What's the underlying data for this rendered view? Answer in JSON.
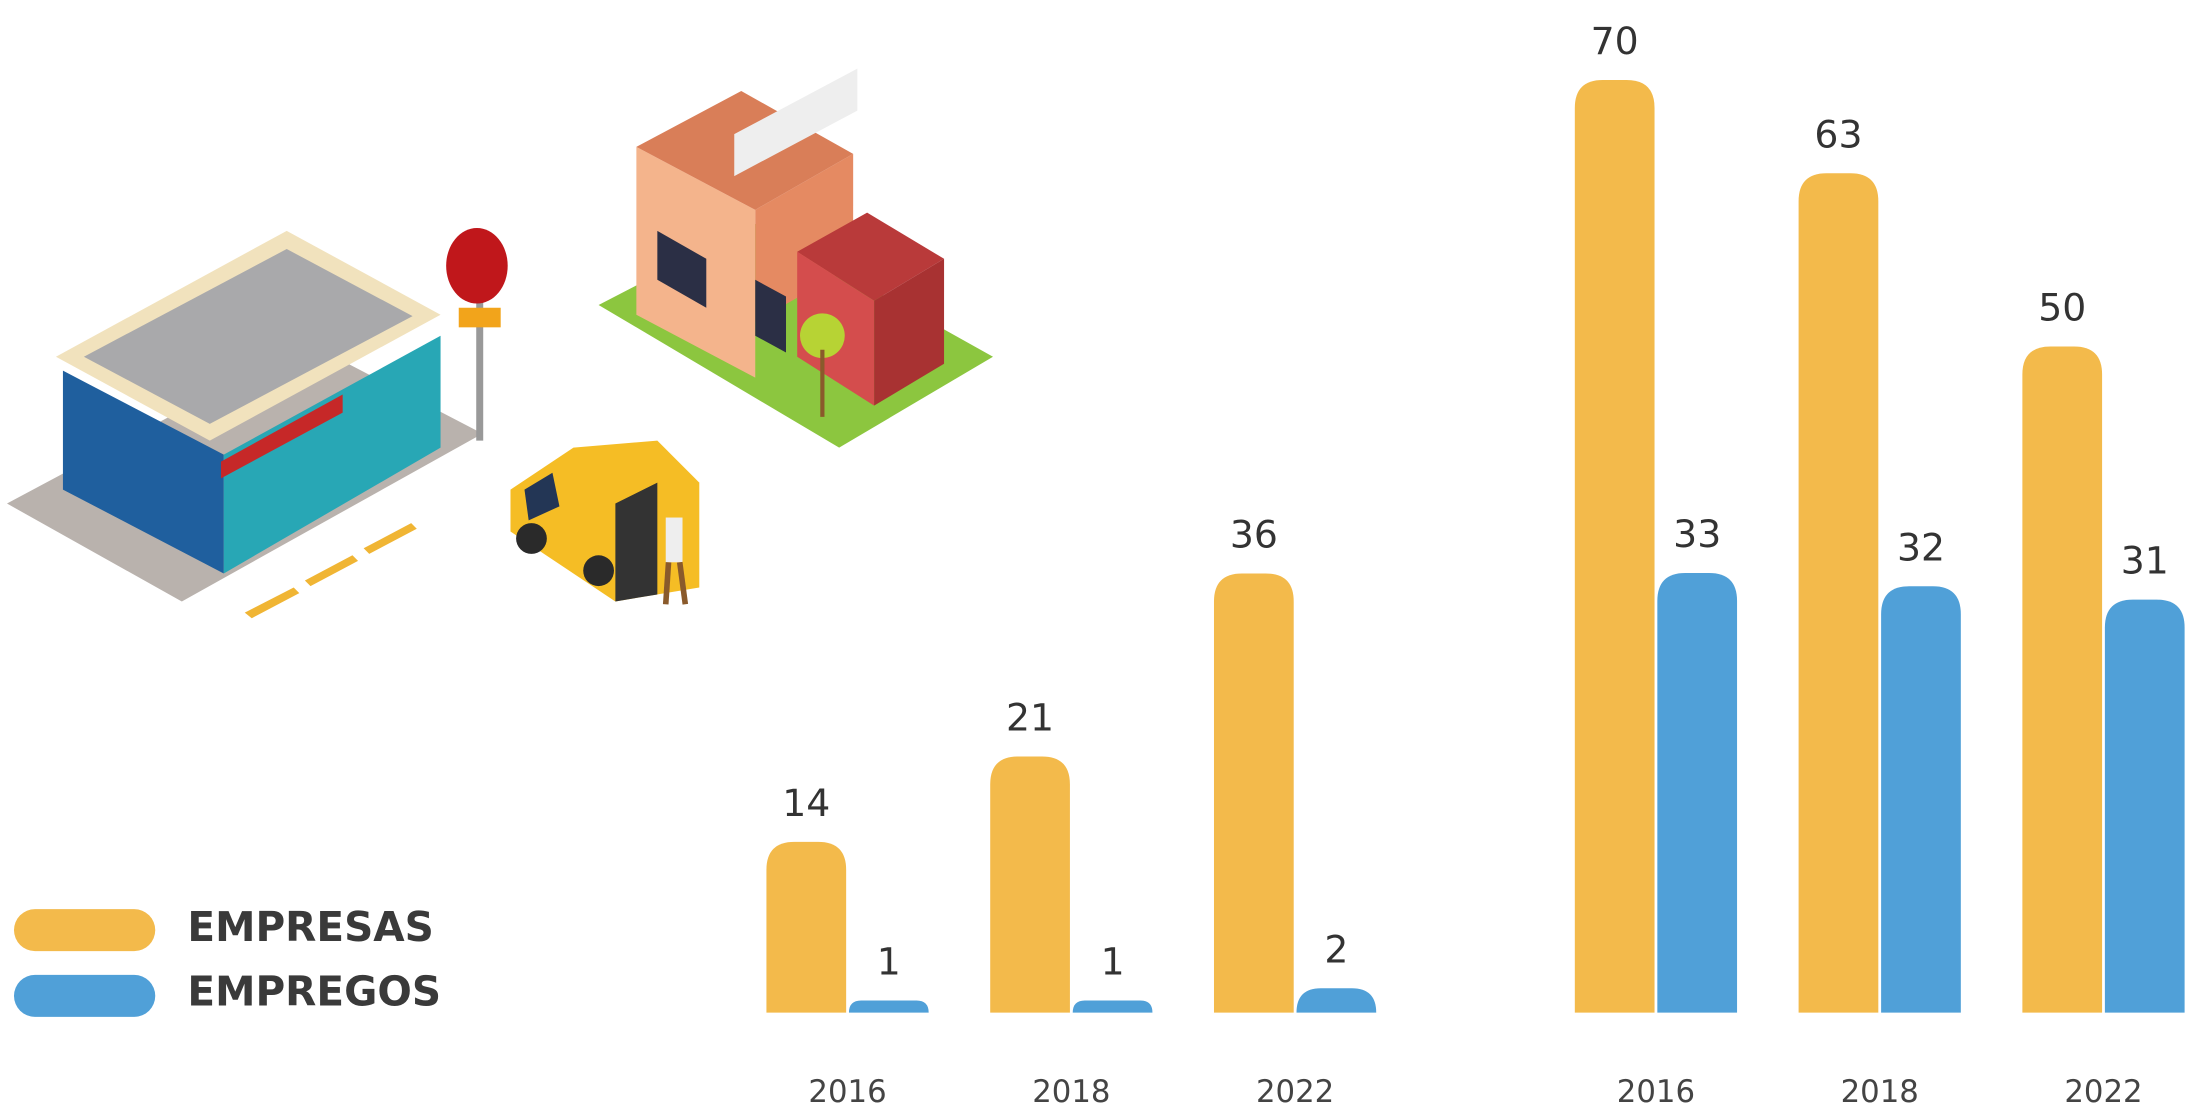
{
  "chart_data": [
    {
      "type": "bar",
      "categories": [
        "2016",
        "2018",
        "2022"
      ],
      "ylim": [
        0,
        83
      ],
      "series": [
        {
          "name": "EMPRESAS",
          "color": "#f3ba4b",
          "values": [
            14,
            21,
            36
          ]
        },
        {
          "name": "EMPREGOS",
          "color": "#50a0d8",
          "values": [
            1,
            1,
            2
          ]
        }
      ]
    },
    {
      "type": "bar",
      "categories": [
        "2016",
        "2018",
        "2022"
      ],
      "ylim": [
        0,
        76
      ],
      "series": [
        {
          "color": "#f3ba4b",
          "values": [
            70,
            63,
            50
          ]
        },
        {
          "color": "#50a0d8",
          "values": [
            33,
            32,
            31
          ]
        }
      ]
    }
  ]
}
